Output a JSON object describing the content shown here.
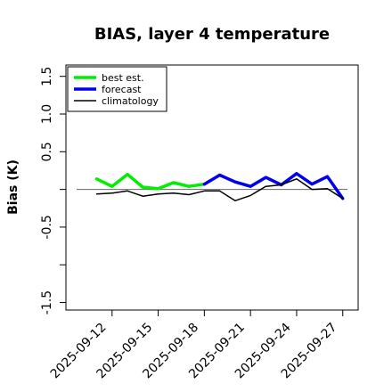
{
  "chart_data": {
    "type": "line",
    "title": "BIAS, layer 4 temperature",
    "xlabel": "",
    "ylabel": "Bias (K)",
    "ylim": [
      -1.6,
      1.65
    ],
    "xlim": [
      "2025-09-09",
      "2025-09-28"
    ],
    "yticks": [
      -1.5,
      -1.0,
      -0.5,
      0.0,
      0.5,
      1.0,
      1.5
    ],
    "ytick_labels": [
      "-1.5",
      "",
      "-0.5",
      "",
      "0.5",
      "1.0",
      "1.5"
    ],
    "xticks": [
      "2025-09-12",
      "2025-09-15",
      "2025-09-18",
      "2025-09-21",
      "2025-09-24",
      "2025-09-27"
    ],
    "highlight_tick": "2025-09-18",
    "highlight_color": "#228b22",
    "zero_line": 0.0,
    "grid": false,
    "legend_position": "top-left",
    "series": [
      {
        "name": "best est.",
        "color": "#00ee00",
        "linewidth": 3.5,
        "x": [
          "2025-09-11",
          "2025-09-12",
          "2025-09-13",
          "2025-09-14",
          "2025-09-15",
          "2025-09-16",
          "2025-09-17",
          "2025-09-18"
        ],
        "y": [
          0.14,
          0.04,
          0.2,
          0.03,
          0.01,
          0.09,
          0.04,
          0.07
        ]
      },
      {
        "name": "forecast",
        "color": "#0000ee",
        "linewidth": 3.5,
        "x": [
          "2025-09-18",
          "2025-09-19",
          "2025-09-20",
          "2025-09-21",
          "2025-09-22",
          "2025-09-23",
          "2025-09-24",
          "2025-09-25",
          "2025-09-26",
          "2025-09-27"
        ],
        "y": [
          0.07,
          0.19,
          0.1,
          0.04,
          0.16,
          0.06,
          0.21,
          0.07,
          0.17,
          -0.12
        ]
      },
      {
        "name": "climatology",
        "color": "#000000",
        "linewidth": 1.5,
        "x": [
          "2025-09-11",
          "2025-09-12",
          "2025-09-13",
          "2025-09-14",
          "2025-09-15",
          "2025-09-16",
          "2025-09-17",
          "2025-09-18",
          "2025-09-19",
          "2025-09-20",
          "2025-09-21",
          "2025-09-22",
          "2025-09-23",
          "2025-09-24",
          "2025-09-25",
          "2025-09-26",
          "2025-09-27"
        ],
        "y": [
          -0.06,
          -0.05,
          -0.02,
          -0.09,
          -0.06,
          -0.05,
          -0.07,
          -0.02,
          -0.02,
          -0.15,
          -0.08,
          0.04,
          0.06,
          0.14,
          0.0,
          0.01,
          -0.12
        ]
      }
    ]
  }
}
